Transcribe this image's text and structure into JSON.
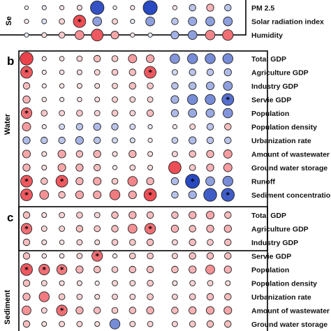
{
  "chart_data": {
    "type": "heatmap",
    "encoding": "bubble",
    "value_range": [
      -1,
      1
    ],
    "colors": {
      "positive": "#e8222b",
      "negative": "#1d3fbd",
      "neutral": "#ffffff",
      "outline": "#222222"
    },
    "columns": 12,
    "panels": [
      {
        "letter": "",
        "side_label": "Se",
        "rows": [
          {
            "label": "PM 2.5",
            "values": [
              0.05,
              -0.1,
              0.1,
              0.15,
              -0.9,
              0.05,
              0.1,
              -0.95,
              0.1,
              -0.3,
              0.35,
              -0.3
            ],
            "sig": []
          },
          {
            "label": "Solar radiation index",
            "values": [
              0.1,
              -0.15,
              0.2,
              0.8,
              -0.5,
              0.2,
              -0.1,
              -0.5,
              -0.3,
              -0.45,
              -0.5,
              -0.5
            ],
            "sig": [
              3
            ]
          },
          {
            "label": "Humidity",
            "values": [
              -0.1,
              0.15,
              0.25,
              0.5,
              0.75,
              0.4,
              0.1,
              -0.1,
              -0.4,
              -0.5,
              0.55,
              0.65
            ],
            "sig": []
          }
        ]
      },
      {
        "letter": "b",
        "side_label": "Water",
        "rows": [
          {
            "label": "Total GDP",
            "values": [
              0.85,
              0.1,
              0.12,
              0.2,
              0.3,
              0.25,
              0.45,
              0.4,
              -0.55,
              -0.6,
              -0.6,
              -0.6
            ],
            "sig": []
          },
          {
            "label": "Agriculture GDP",
            "values": [
              0.75,
              0.1,
              0.12,
              0.15,
              0.2,
              0.25,
              0.3,
              0.75,
              -0.2,
              -0.3,
              -0.3,
              -0.35
            ],
            "sig": [
              0,
              7
            ]
          },
          {
            "label": "Industry GDP",
            "values": [
              0.3,
              0.1,
              0.12,
              0.15,
              0.15,
              0.2,
              0.3,
              0.25,
              -0.3,
              -0.35,
              -0.4,
              -0.5
            ],
            "sig": []
          },
          {
            "label": "Servie GDP",
            "values": [
              0.35,
              0.12,
              0.1,
              0.12,
              0.15,
              0.2,
              0.2,
              0.2,
              -0.4,
              -0.6,
              -0.6,
              -0.75
            ],
            "sig": [
              11
            ]
          },
          {
            "label": "Population",
            "values": [
              0.65,
              0.25,
              0.2,
              0.25,
              0.2,
              0.25,
              0.2,
              0.3,
              -0.35,
              -0.45,
              -0.45,
              -0.55
            ],
            "sig": [
              0
            ]
          },
          {
            "label": "Population density",
            "values": [
              0.45,
              0.1,
              -0.2,
              -0.3,
              -0.35,
              -0.3,
              -0.2,
              -0.1,
              0.1,
              0.2,
              -0.3,
              0.3
            ],
            "sig": []
          },
          {
            "label": "Urbanization rate",
            "values": [
              -0.35,
              -0.3,
              -0.3,
              -0.4,
              -0.3,
              -0.2,
              -0.15,
              0.1,
              -0.25,
              -0.35,
              -0.3,
              -0.3
            ],
            "sig": []
          },
          {
            "label": "Amount of wastewater",
            "values": [
              0.4,
              0.15,
              0.4,
              0.3,
              0.35,
              0.15,
              0.35,
              0.15,
              0.2,
              0.3,
              0.35,
              0.45
            ],
            "sig": []
          },
          {
            "label": "Ground water storage",
            "values": [
              0.35,
              0.15,
              0.4,
              0.35,
              0.3,
              0.1,
              0.2,
              0.15,
              0.8,
              0.25,
              0.35,
              0.45
            ],
            "sig": []
          },
          {
            "label": "Runoff",
            "values": [
              0.75,
              0.3,
              0.75,
              0.35,
              0.4,
              0.25,
              0.55,
              0.35,
              -0.35,
              -0.95,
              -0.5,
              -0.6
            ],
            "sig": [
              0,
              2,
              9
            ]
          },
          {
            "label": "Sediment concentrations",
            "values": [
              0.75,
              0.5,
              0.3,
              0.4,
              0.4,
              0.6,
              0.4,
              0.8,
              -0.3,
              -0.4,
              -0.85,
              -0.85
            ],
            "sig": [
              0,
              7,
              11
            ]
          }
        ]
      },
      {
        "letter": "c",
        "side_label": "Sediment",
        "rows": [
          {
            "label": "Total GDP",
            "values": [
              0.3,
              0.15,
              0.2,
              0.25,
              0.2,
              0.3,
              0.35,
              0.3,
              0.3,
              0.35,
              0.4,
              0.3
            ],
            "sig": []
          },
          {
            "label": "Agriculture GDP",
            "values": [
              0.65,
              0.2,
              0.2,
              0.3,
              0.25,
              0.3,
              0.5,
              0.65,
              0.35,
              0.3,
              0.35,
              0.35
            ],
            "sig": [
              0,
              7
            ]
          },
          {
            "label": "Industry GDP",
            "values": [
              0.3,
              0.15,
              0.12,
              0.2,
              0.15,
              0.25,
              0.25,
              0.3,
              0.2,
              0.3,
              0.25,
              0.3
            ],
            "sig": []
          },
          {
            "label": "Servie GDP",
            "values": [
              0.3,
              0.12,
              0.12,
              0.2,
              0.65,
              0.1,
              0.25,
              0.25,
              0.2,
              0.3,
              0.3,
              0.3
            ],
            "sig": [
              4
            ]
          },
          {
            "label": "Population",
            "values": [
              0.75,
              0.65,
              0.6,
              0.35,
              0.3,
              0.25,
              0.3,
              0.3,
              0.3,
              0.35,
              0.5,
              0.35
            ],
            "sig": [
              0,
              1,
              2
            ]
          },
          {
            "label": "Population density",
            "values": [
              0.3,
              0.2,
              0.15,
              0.15,
              0.1,
              0.2,
              0.2,
              0.25,
              0.15,
              0.2,
              0.2,
              0.15
            ],
            "sig": []
          },
          {
            "label": "Urbanization rate",
            "values": [
              0.35,
              0.6,
              0.25,
              0.2,
              0.15,
              0.2,
              0.2,
              0.25,
              0.2,
              0.25,
              0.3,
              0.3
            ],
            "sig": []
          },
          {
            "label": "Amount of wastewater",
            "values": [
              0.5,
              0.2,
              0.65,
              0.35,
              0.3,
              0.25,
              0.3,
              0.35,
              0.3,
              0.35,
              0.4,
              0.4
            ],
            "sig": [
              2
            ]
          },
          {
            "label": "Ground water storage",
            "values": [
              0.3,
              0.15,
              0.2,
              0.2,
              0.15,
              -0.6,
              0.2,
              0.2,
              0.2,
              0.25,
              0.3,
              0.3
            ],
            "sig": []
          }
        ]
      }
    ]
  }
}
